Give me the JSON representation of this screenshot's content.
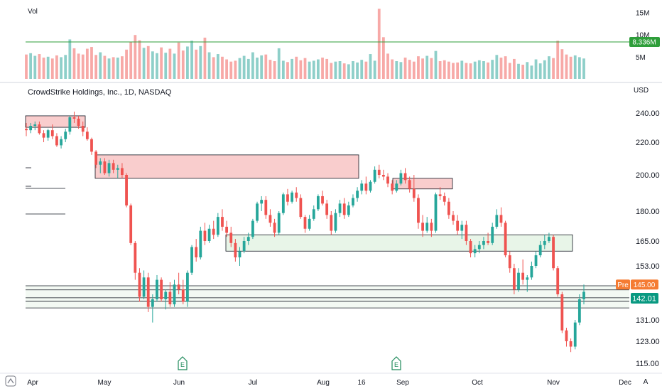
{
  "volume_pane": {
    "label": "Vol",
    "axis_ticks": [
      {
        "label": "15M",
        "value": 15000000
      },
      {
        "label": "10M",
        "value": 10000000
      },
      {
        "label": "5M",
        "value": 5000000
      }
    ],
    "level_badge": "8.336M",
    "level_value": 8336000
  },
  "price_pane": {
    "title": "CrowdStrike Holdings, Inc., 1D, NASDAQ",
    "currency": "USD",
    "axis_ticks": [
      "240.00",
      "220.00",
      "200.00",
      "180.00",
      "165.00",
      "153.00",
      "131.00",
      "123.00",
      "115.00"
    ],
    "pre_label": "Pre",
    "pre_price": "145.00",
    "last_price": "142.01",
    "earnings_marker": "E",
    "bottom_left_icon": "tradingview-logo-icon",
    "bottom_right_label": "A"
  },
  "time_axis": [
    "Apr",
    "May",
    "Jun",
    "Jul",
    "Aug",
    "16",
    "Sep",
    "Oct",
    "Nov",
    "Dec"
  ],
  "colors": {
    "up": "#26a69a",
    "down": "#ef5350",
    "up_volume": "#8ecfc9",
    "down_volume": "#f7a9a7",
    "level_line": "#2e9e3a",
    "pre_badge": "#f57c33",
    "last_badge": "#089981",
    "resistance_zone": "#f8c8c8",
    "support_zone": "#e6f4e6"
  },
  "chart_data": {
    "type": "candlestick",
    "title": "CrowdStrike Holdings, Inc., 1D, NASDAQ",
    "period": "Apr–Nov (daily)",
    "price_range": [
      114,
      247
    ],
    "volume_range": [
      0,
      16500000
    ],
    "candles": [
      {
        "o": 229,
        "h": 233,
        "l": 224,
        "c": 228
      },
      {
        "o": 228,
        "h": 233,
        "l": 226,
        "c": 231
      },
      {
        "o": 231,
        "h": 234,
        "l": 228,
        "c": 232
      },
      {
        "o": 232,
        "h": 234,
        "l": 225,
        "c": 226
      },
      {
        "o": 226,
        "h": 228,
        "l": 220,
        "c": 223
      },
      {
        "o": 223,
        "h": 229,
        "l": 221,
        "c": 228
      },
      {
        "o": 228,
        "h": 232,
        "l": 222,
        "c": 224
      },
      {
        "o": 224,
        "h": 226,
        "l": 217,
        "c": 218
      },
      {
        "o": 218,
        "h": 224,
        "l": 216,
        "c": 222
      },
      {
        "o": 222,
        "h": 229,
        "l": 220,
        "c": 227
      },
      {
        "o": 227,
        "h": 238,
        "l": 225,
        "c": 237
      },
      {
        "o": 237,
        "h": 241,
        "l": 233,
        "c": 236
      },
      {
        "o": 236,
        "h": 238,
        "l": 229,
        "c": 231
      },
      {
        "o": 231,
        "h": 234,
        "l": 224,
        "c": 227
      },
      {
        "o": 227,
        "h": 230,
        "l": 221,
        "c": 222
      },
      {
        "o": 222,
        "h": 223,
        "l": 212,
        "c": 214
      },
      {
        "o": 214,
        "h": 215,
        "l": 204,
        "c": 206
      },
      {
        "o": 206,
        "h": 210,
        "l": 201,
        "c": 208
      },
      {
        "o": 208,
        "h": 210,
        "l": 200,
        "c": 201
      },
      {
        "o": 201,
        "h": 209,
        "l": 199,
        "c": 207
      },
      {
        "o": 207,
        "h": 209,
        "l": 201,
        "c": 203
      },
      {
        "o": 203,
        "h": 206,
        "l": 198,
        "c": 204
      },
      {
        "o": 204,
        "h": 207,
        "l": 198,
        "c": 200
      },
      {
        "o": 200,
        "h": 201,
        "l": 182,
        "c": 183
      },
      {
        "o": 183,
        "h": 184,
        "l": 163,
        "c": 164
      },
      {
        "o": 164,
        "h": 165,
        "l": 147,
        "c": 150
      },
      {
        "o": 150,
        "h": 152,
        "l": 138,
        "c": 140
      },
      {
        "o": 140,
        "h": 151,
        "l": 139,
        "c": 148
      },
      {
        "o": 148,
        "h": 150,
        "l": 134,
        "c": 136
      },
      {
        "o": 136,
        "h": 141,
        "l": 130,
        "c": 139
      },
      {
        "o": 139,
        "h": 149,
        "l": 138,
        "c": 147
      },
      {
        "o": 147,
        "h": 148,
        "l": 138,
        "c": 139
      },
      {
        "o": 139,
        "h": 143,
        "l": 135,
        "c": 142
      },
      {
        "o": 142,
        "h": 146,
        "l": 136,
        "c": 137
      },
      {
        "o": 137,
        "h": 147,
        "l": 136,
        "c": 145
      },
      {
        "o": 145,
        "h": 150,
        "l": 141,
        "c": 143
      },
      {
        "o": 143,
        "h": 147,
        "l": 137,
        "c": 138
      },
      {
        "o": 138,
        "h": 151,
        "l": 136,
        "c": 150
      },
      {
        "o": 150,
        "h": 163,
        "l": 149,
        "c": 162
      },
      {
        "o": 162,
        "h": 166,
        "l": 155,
        "c": 157
      },
      {
        "o": 157,
        "h": 172,
        "l": 156,
        "c": 170
      },
      {
        "o": 170,
        "h": 174,
        "l": 163,
        "c": 165
      },
      {
        "o": 165,
        "h": 173,
        "l": 164,
        "c": 171
      },
      {
        "o": 171,
        "h": 175,
        "l": 166,
        "c": 168
      },
      {
        "o": 168,
        "h": 179,
        "l": 167,
        "c": 177
      },
      {
        "o": 177,
        "h": 181,
        "l": 170,
        "c": 172
      },
      {
        "o": 172,
        "h": 175,
        "l": 167,
        "c": 169
      },
      {
        "o": 169,
        "h": 172,
        "l": 162,
        "c": 164
      },
      {
        "o": 164,
        "h": 166,
        "l": 155,
        "c": 157
      },
      {
        "o": 157,
        "h": 162,
        "l": 153,
        "c": 160
      },
      {
        "o": 160,
        "h": 167,
        "l": 159,
        "c": 165
      },
      {
        "o": 165,
        "h": 169,
        "l": 163,
        "c": 167
      },
      {
        "o": 167,
        "h": 176,
        "l": 166,
        "c": 175
      },
      {
        "o": 175,
        "h": 185,
        "l": 174,
        "c": 184
      },
      {
        "o": 184,
        "h": 188,
        "l": 180,
        "c": 186
      },
      {
        "o": 186,
        "h": 188,
        "l": 176,
        "c": 178
      },
      {
        "o": 178,
        "h": 181,
        "l": 172,
        "c": 174
      },
      {
        "o": 174,
        "h": 176,
        "l": 167,
        "c": 169
      },
      {
        "o": 169,
        "h": 180,
        "l": 168,
        "c": 179
      },
      {
        "o": 179,
        "h": 190,
        "l": 178,
        "c": 189
      },
      {
        "o": 189,
        "h": 192,
        "l": 183,
        "c": 185
      },
      {
        "o": 185,
        "h": 191,
        "l": 184,
        "c": 190
      },
      {
        "o": 190,
        "h": 193,
        "l": 185,
        "c": 187
      },
      {
        "o": 187,
        "h": 189,
        "l": 176,
        "c": 177
      },
      {
        "o": 177,
        "h": 178,
        "l": 169,
        "c": 171
      },
      {
        "o": 171,
        "h": 178,
        "l": 170,
        "c": 176
      },
      {
        "o": 176,
        "h": 183,
        "l": 175,
        "c": 181
      },
      {
        "o": 181,
        "h": 189,
        "l": 180,
        "c": 188
      },
      {
        "o": 188,
        "h": 191,
        "l": 183,
        "c": 184
      },
      {
        "o": 184,
        "h": 186,
        "l": 176,
        "c": 178
      },
      {
        "o": 178,
        "h": 180,
        "l": 168,
        "c": 170
      },
      {
        "o": 170,
        "h": 181,
        "l": 169,
        "c": 179
      },
      {
        "o": 179,
        "h": 186,
        "l": 177,
        "c": 184
      },
      {
        "o": 184,
        "h": 187,
        "l": 176,
        "c": 178
      },
      {
        "o": 178,
        "h": 185,
        "l": 177,
        "c": 183
      },
      {
        "o": 183,
        "h": 189,
        "l": 182,
        "c": 187
      },
      {
        "o": 187,
        "h": 193,
        "l": 185,
        "c": 191
      },
      {
        "o": 191,
        "h": 197,
        "l": 189,
        "c": 195
      },
      {
        "o": 195,
        "h": 199,
        "l": 189,
        "c": 191
      },
      {
        "o": 191,
        "h": 197,
        "l": 190,
        "c": 196
      },
      {
        "o": 196,
        "h": 205,
        "l": 195,
        "c": 203
      },
      {
        "o": 203,
        "h": 206,
        "l": 198,
        "c": 200
      },
      {
        "o": 200,
        "h": 203,
        "l": 197,
        "c": 199
      },
      {
        "o": 199,
        "h": 201,
        "l": 193,
        "c": 195
      },
      {
        "o": 195,
        "h": 197,
        "l": 189,
        "c": 191
      },
      {
        "o": 191,
        "h": 197,
        "l": 190,
        "c": 195
      },
      {
        "o": 195,
        "h": 203,
        "l": 194,
        "c": 201
      },
      {
        "o": 201,
        "h": 204,
        "l": 195,
        "c": 197
      },
      {
        "o": 197,
        "h": 199,
        "l": 190,
        "c": 192
      },
      {
        "o": 192,
        "h": 200,
        "l": 185,
        "c": 187
      },
      {
        "o": 187,
        "h": 189,
        "l": 171,
        "c": 174
      },
      {
        "o": 174,
        "h": 178,
        "l": 167,
        "c": 170
      },
      {
        "o": 170,
        "h": 177,
        "l": 169,
        "c": 174
      },
      {
        "o": 174,
        "h": 176,
        "l": 167,
        "c": 170
      },
      {
        "o": 170,
        "h": 190,
        "l": 169,
        "c": 189
      },
      {
        "o": 189,
        "h": 193,
        "l": 186,
        "c": 188
      },
      {
        "o": 188,
        "h": 190,
        "l": 183,
        "c": 185
      },
      {
        "o": 185,
        "h": 187,
        "l": 176,
        "c": 178
      },
      {
        "o": 178,
        "h": 180,
        "l": 173,
        "c": 175
      },
      {
        "o": 175,
        "h": 178,
        "l": 168,
        "c": 170
      },
      {
        "o": 170,
        "h": 175,
        "l": 166,
        "c": 173
      },
      {
        "o": 173,
        "h": 175,
        "l": 163,
        "c": 165
      },
      {
        "o": 165,
        "h": 166,
        "l": 157,
        "c": 159
      },
      {
        "o": 159,
        "h": 163,
        "l": 157,
        "c": 161
      },
      {
        "o": 161,
        "h": 165,
        "l": 159,
        "c": 163
      },
      {
        "o": 163,
        "h": 167,
        "l": 161,
        "c": 165
      },
      {
        "o": 165,
        "h": 169,
        "l": 163,
        "c": 164
      },
      {
        "o": 164,
        "h": 174,
        "l": 163,
        "c": 172
      },
      {
        "o": 172,
        "h": 181,
        "l": 171,
        "c": 178
      },
      {
        "o": 178,
        "h": 182,
        "l": 172,
        "c": 174
      },
      {
        "o": 174,
        "h": 175,
        "l": 157,
        "c": 158
      },
      {
        "o": 158,
        "h": 160,
        "l": 150,
        "c": 152
      },
      {
        "o": 152,
        "h": 154,
        "l": 141,
        "c": 143
      },
      {
        "o": 143,
        "h": 152,
        "l": 142,
        "c": 150
      },
      {
        "o": 150,
        "h": 156,
        "l": 145,
        "c": 147
      },
      {
        "o": 147,
        "h": 149,
        "l": 142,
        "c": 148
      },
      {
        "o": 148,
        "h": 155,
        "l": 147,
        "c": 153
      },
      {
        "o": 153,
        "h": 160,
        "l": 152,
        "c": 158
      },
      {
        "o": 158,
        "h": 165,
        "l": 157,
        "c": 163
      },
      {
        "o": 163,
        "h": 168,
        "l": 161,
        "c": 165
      },
      {
        "o": 165,
        "h": 169,
        "l": 164,
        "c": 167
      },
      {
        "o": 167,
        "h": 168,
        "l": 151,
        "c": 152
      },
      {
        "o": 152,
        "h": 153,
        "l": 140,
        "c": 141
      },
      {
        "o": 141,
        "h": 142,
        "l": 126,
        "c": 127
      },
      {
        "o": 127,
        "h": 128,
        "l": 121,
        "c": 123
      },
      {
        "o": 123,
        "h": 124,
        "l": 119,
        "c": 121
      },
      {
        "o": 121,
        "h": 131,
        "l": 120,
        "c": 130
      },
      {
        "o": 130,
        "h": 141,
        "l": 129,
        "c": 139
      },
      {
        "o": 139,
        "h": 145,
        "l": 137,
        "c": 142
      }
    ],
    "volume": [
      5.5,
      5.8,
      5.2,
      5.6,
      4.8,
      5.0,
      4.6,
      5.3,
      4.9,
      5.4,
      8.9,
      6.9,
      5.7,
      5.5,
      6.8,
      7.2,
      5.4,
      6.0,
      5.2,
      4.6,
      4.9,
      4.8,
      5.1,
      6.6,
      8.3,
      9.9,
      8.7,
      7.0,
      7.4,
      6.2,
      5.8,
      7.1,
      5.9,
      6.8,
      5.7,
      8.2,
      6.4,
      7.3,
      8.6,
      6.6,
      7.4,
      9.3,
      6.0,
      4.9,
      5.6,
      5.0,
      4.4,
      3.9,
      4.1,
      4.7,
      5.2,
      4.5,
      6.0,
      4.8,
      5.3,
      5.5,
      4.3,
      4.0,
      6.9,
      4.1,
      3.8,
      4.5,
      5.0,
      4.2,
      4.7,
      3.9,
      4.1,
      4.4,
      4.8,
      4.5,
      3.6,
      3.9,
      4.0,
      3.5,
      3.3,
      4.0,
      3.7,
      4.3,
      3.9,
      5.6,
      4.1,
      15.8,
      9.4,
      5.7,
      4.4,
      4.0,
      3.8,
      4.8,
      4.3,
      3.9,
      5.1,
      4.6,
      5.2,
      4.7,
      6.3,
      4.0,
      4.2,
      3.9,
      3.6,
      3.7,
      4.1,
      3.6,
      3.5,
      3.9,
      4.2,
      4.0,
      3.7,
      4.3,
      5.4,
      4.8,
      5.1,
      3.6,
      4.5,
      3.4,
      3.2,
      3.8,
      3.0,
      4.4,
      3.5,
      4.2,
      5.1,
      4.7,
      8.6,
      6.7,
      5.5,
      5.0,
      5.3,
      4.9,
      4.6
    ],
    "zones": [
      {
        "kind": "resistance",
        "low": 230,
        "high": 238
      },
      {
        "kind": "resistance",
        "low": 198,
        "high": 212
      },
      {
        "kind": "resistance",
        "low": 192,
        "high": 198
      },
      {
        "kind": "support",
        "low": 160,
        "high": 168
      }
    ],
    "levels": [
      144.5,
      142.8,
      139.6,
      138.2,
      135.6
    ]
  }
}
